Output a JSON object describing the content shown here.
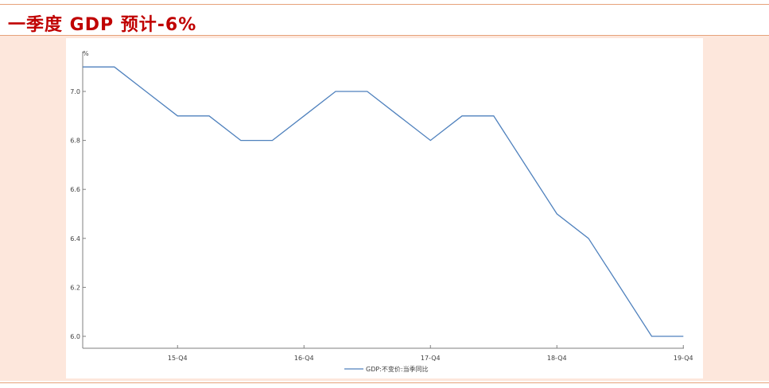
{
  "title": "一季度 GDP 预计-6%",
  "colors": {
    "title": "#c00000",
    "rule": "#e6a27a",
    "background": "#fde7dc",
    "panel": "#ffffff",
    "line": "#4f81bd",
    "axis": "#7f7f7f",
    "text": "#404040"
  },
  "chart_data": {
    "type": "line",
    "title": "",
    "xlabel": "",
    "ylabel": "%",
    "ylim": [
      6.0,
      7.1
    ],
    "yticks": [
      6.0,
      6.2,
      6.4,
      6.6,
      6.8,
      7.0
    ],
    "ytick_labels": [
      "6.0",
      "6.2",
      "6.4",
      "6.6",
      "6.8",
      "7.0"
    ],
    "categories": [
      "15-Q1",
      "15-Q2",
      "15-Q3",
      "15-Q4",
      "16-Q1",
      "16-Q2",
      "16-Q3",
      "16-Q4",
      "17-Q1",
      "17-Q2",
      "17-Q3",
      "17-Q4",
      "18-Q1",
      "18-Q2",
      "18-Q3",
      "18-Q4",
      "19-Q1",
      "19-Q2",
      "19-Q3",
      "19-Q4"
    ],
    "x_labels": [
      "15-Q4",
      "16-Q4",
      "17-Q4",
      "18-Q4",
      "19-Q4"
    ],
    "series": [
      {
        "name": "GDP:不变价:当季同比",
        "values": [
          7.1,
          7.1,
          7.0,
          6.9,
          6.9,
          6.8,
          6.8,
          6.9,
          7.0,
          7.0,
          6.9,
          6.8,
          6.9,
          6.9,
          6.7,
          6.5,
          6.4,
          6.2,
          6.0,
          6.0
        ]
      }
    ],
    "legend": "bottom-center",
    "grid": false
  }
}
